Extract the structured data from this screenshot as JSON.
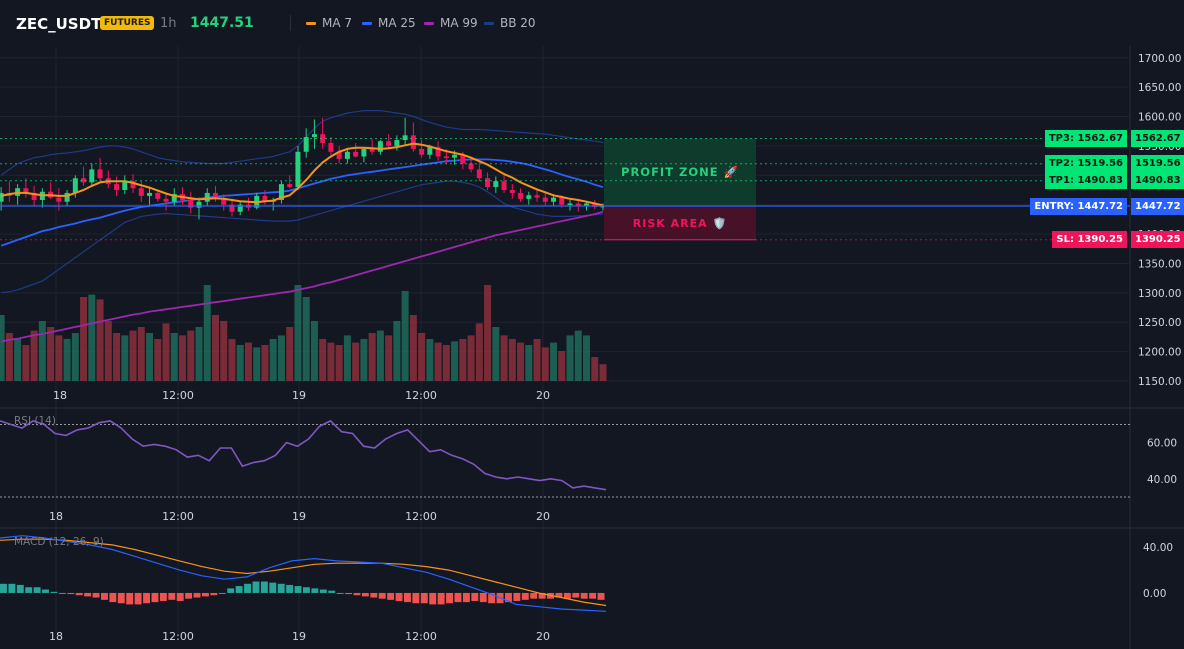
{
  "header": {
    "symbol": "ZEC_USDT",
    "badge": "FUTURES",
    "timeframe": "1h",
    "price": "1447.51",
    "legend": [
      {
        "name": "MA 7",
        "color": "#f7931a"
      },
      {
        "name": "MA 25",
        "color": "#2962ff"
      },
      {
        "name": "MA 99",
        "color": "#9c27b0"
      },
      {
        "name": "BB 20",
        "color": "#1e3a8a"
      }
    ]
  },
  "zones": {
    "profit": "PROFIT ZONE 🚀",
    "risk": "RISK AREA 🛡️"
  },
  "levels": [
    {
      "key": "tp3",
      "tag": "TP3: 1562.67",
      "price": 1562.67,
      "value": "1562.67",
      "color": "#00e676",
      "text": "#0b1a12"
    },
    {
      "key": "tp2",
      "tag": "TP2: 1519.56",
      "price": 1519.56,
      "value": "1519.56",
      "color": "#00e676",
      "text": "#0b1a12"
    },
    {
      "key": "tp1",
      "tag": "TP1: 1490.83",
      "price": 1490.83,
      "value": "1490.83",
      "color": "#00e676",
      "text": "#0b1a12"
    },
    {
      "key": "entry",
      "tag": "ENTRY: 1447.72",
      "price": 1447.72,
      "value": "1447.72",
      "color": "#2962ff",
      "text": "#ffffff"
    },
    {
      "key": "sl",
      "tag": "SL: 1390.25",
      "price": 1390.25,
      "value": "1390.25",
      "color": "#f0145a",
      "text": "#ffffff"
    }
  ],
  "chart_data": [
    {
      "type": "candlestick",
      "ylim": [
        1150,
        1720
      ],
      "yticks": [
        "1700.00",
        "1650.00",
        "1600.00",
        "1550.00",
        "1500.00",
        "1450.00",
        "1400.00",
        "1350.00",
        "1300.00",
        "1250.00",
        "1200.00",
        "1150.00"
      ],
      "xticks": [
        "18",
        "12:00",
        "19",
        "12:00",
        "20"
      ],
      "candles": [
        [
          1455,
          1480,
          1440,
          1470
        ],
        [
          1470,
          1490,
          1455,
          1465
        ],
        [
          1465,
          1485,
          1450,
          1478
        ],
        [
          1478,
          1495,
          1462,
          1470
        ],
        [
          1470,
          1482,
          1448,
          1458
        ],
        [
          1458,
          1478,
          1445,
          1472
        ],
        [
          1472,
          1488,
          1460,
          1462
        ],
        [
          1462,
          1478,
          1440,
          1455
        ],
        [
          1455,
          1475,
          1448,
          1470
        ],
        [
          1470,
          1500,
          1462,
          1495
        ],
        [
          1495,
          1515,
          1482,
          1488
        ],
        [
          1488,
          1520,
          1480,
          1510
        ],
        [
          1510,
          1530,
          1490,
          1495
        ],
        [
          1495,
          1508,
          1478,
          1485
        ],
        [
          1485,
          1498,
          1465,
          1475
        ],
        [
          1475,
          1500,
          1468,
          1490
        ],
        [
          1490,
          1502,
          1470,
          1478
        ],
        [
          1478,
          1490,
          1455,
          1465
        ],
        [
          1465,
          1480,
          1450,
          1470
        ],
        [
          1470,
          1475,
          1455,
          1460
        ],
        [
          1460,
          1470,
          1440,
          1455
        ],
        [
          1455,
          1478,
          1448,
          1468
        ],
        [
          1468,
          1480,
          1450,
          1458
        ],
        [
          1458,
          1472,
          1435,
          1445
        ],
        [
          1445,
          1462,
          1425,
          1455
        ],
        [
          1455,
          1478,
          1448,
          1470
        ],
        [
          1470,
          1482,
          1455,
          1460
        ],
        [
          1460,
          1468,
          1440,
          1450
        ],
        [
          1450,
          1460,
          1430,
          1438
        ],
        [
          1438,
          1455,
          1432,
          1450
        ],
        [
          1450,
          1462,
          1440,
          1445
        ],
        [
          1445,
          1470,
          1442,
          1465
        ],
        [
          1465,
          1475,
          1450,
          1455
        ],
        [
          1455,
          1462,
          1440,
          1458
        ],
        [
          1458,
          1490,
          1452,
          1485
        ],
        [
          1485,
          1500,
          1478,
          1480
        ],
        [
          1480,
          1550,
          1475,
          1540
        ],
        [
          1540,
          1580,
          1530,
          1565
        ],
        [
          1565,
          1595,
          1545,
          1570
        ],
        [
          1570,
          1598,
          1545,
          1555
        ],
        [
          1555,
          1565,
          1535,
          1540
        ],
        [
          1540,
          1550,
          1520,
          1528
        ],
        [
          1528,
          1545,
          1520,
          1540
        ],
        [
          1540,
          1555,
          1530,
          1532
        ],
        [
          1532,
          1548,
          1522,
          1545
        ],
        [
          1545,
          1562,
          1535,
          1540
        ],
        [
          1540,
          1560,
          1535,
          1558
        ],
        [
          1558,
          1570,
          1545,
          1550
        ],
        [
          1550,
          1568,
          1542,
          1560
        ],
        [
          1560,
          1598,
          1552,
          1568
        ],
        [
          1568,
          1590,
          1540,
          1545
        ],
        [
          1545,
          1560,
          1530,
          1535
        ],
        [
          1535,
          1552,
          1528,
          1548
        ],
        [
          1548,
          1558,
          1525,
          1532
        ],
        [
          1532,
          1545,
          1520,
          1530
        ],
        [
          1530,
          1542,
          1518,
          1535
        ],
        [
          1535,
          1540,
          1510,
          1520
        ],
        [
          1520,
          1530,
          1505,
          1510
        ],
        [
          1510,
          1522,
          1490,
          1495
        ],
        [
          1495,
          1505,
          1475,
          1480
        ],
        [
          1480,
          1498,
          1470,
          1490
        ],
        [
          1490,
          1500,
          1470,
          1475
        ],
        [
          1475,
          1485,
          1460,
          1470
        ],
        [
          1470,
          1478,
          1455,
          1460
        ],
        [
          1460,
          1472,
          1450,
          1466
        ],
        [
          1466,
          1478,
          1455,
          1462
        ],
        [
          1462,
          1470,
          1448,
          1455
        ],
        [
          1455,
          1468,
          1448,
          1462
        ],
        [
          1462,
          1466,
          1445,
          1450
        ],
        [
          1450,
          1460,
          1440,
          1452
        ],
        [
          1452,
          1460,
          1438,
          1448
        ],
        [
          1448,
          1455,
          1440,
          1452
        ],
        [
          1452,
          1458,
          1442,
          1446
        ],
        [
          1446,
          1452,
          1440,
          1448
        ]
      ],
      "ma7": [
        1465,
        1468,
        1470,
        1470,
        1468,
        1466,
        1466,
        1465,
        1465,
        1470,
        1475,
        1482,
        1488,
        1490,
        1490,
        1490,
        1487,
        1483,
        1479,
        1474,
        1469,
        1465,
        1463,
        1461,
        1459,
        1460,
        1461,
        1460,
        1458,
        1456,
        1455,
        1454,
        1456,
        1457,
        1462,
        1466,
        1478,
        1492,
        1508,
        1522,
        1532,
        1540,
        1545,
        1547,
        1547,
        1546,
        1545,
        1546,
        1548,
        1551,
        1554,
        1552,
        1549,
        1545,
        1541,
        1538,
        1535,
        1530,
        1524,
        1518,
        1510,
        1502,
        1496,
        1488,
        1482,
        1476,
        1471,
        1466,
        1463,
        1460,
        1458,
        1455,
        1452,
        1449
      ],
      "ma25": [
        1380,
        1385,
        1390,
        1395,
        1400,
        1405,
        1408,
        1412,
        1415,
        1418,
        1422,
        1425,
        1428,
        1432,
        1436,
        1440,
        1443,
        1446,
        1448,
        1450,
        1452,
        1454,
        1456,
        1458,
        1460,
        1462,
        1464,
        1465,
        1466,
        1467,
        1468,
        1469,
        1470,
        1471,
        1472,
        1474,
        1478,
        1482,
        1486,
        1490,
        1494,
        1497,
        1500,
        1502,
        1504,
        1506,
        1508,
        1510,
        1512,
        1514,
        1516,
        1518,
        1520,
        1522,
        1524,
        1525,
        1526,
        1527,
        1527,
        1527,
        1526,
        1525,
        1523,
        1521,
        1518,
        1514,
        1510,
        1506,
        1501,
        1497,
        1493,
        1489,
        1484,
        1480
      ],
      "ma99": [
        1217,
        1220,
        1222,
        1225,
        1228,
        1230,
        1233,
        1236,
        1239,
        1242,
        1245,
        1248,
        1251,
        1254,
        1257,
        1260,
        1263,
        1265,
        1268,
        1270,
        1272,
        1274,
        1276,
        1278,
        1280,
        1282,
        1284,
        1286,
        1288,
        1290,
        1292,
        1294,
        1296,
        1298,
        1300,
        1302,
        1305,
        1308,
        1311,
        1315,
        1318,
        1322,
        1326,
        1330,
        1334,
        1338,
        1342,
        1346,
        1350,
        1354,
        1358,
        1362,
        1366,
        1370,
        1374,
        1378,
        1382,
        1386,
        1390,
        1394,
        1398,
        1401,
        1404,
        1407,
        1410,
        1413,
        1416,
        1419,
        1422,
        1425,
        1428,
        1431,
        1434,
        1438
      ],
      "bb_upper": [
        1500,
        1510,
        1520,
        1525,
        1530,
        1532,
        1535,
        1537,
        1538,
        1540,
        1542,
        1545,
        1548,
        1550,
        1550,
        1548,
        1545,
        1540,
        1535,
        1530,
        1527,
        1525,
        1523,
        1522,
        1521,
        1520,
        1520,
        1520,
        1522,
        1524,
        1526,
        1528,
        1530,
        1532,
        1536,
        1540,
        1550,
        1565,
        1580,
        1592,
        1598,
        1602,
        1606,
        1608,
        1610,
        1610,
        1610,
        1608,
        1606,
        1604,
        1600,
        1595,
        1590,
        1586,
        1582,
        1580,
        1578,
        1578,
        1578,
        1577,
        1576,
        1575,
        1574,
        1573,
        1572,
        1571,
        1570,
        1568,
        1566,
        1564,
        1562,
        1560,
        1558,
        1556
      ],
      "bb_lower": [
        1300,
        1302,
        1305,
        1310,
        1315,
        1320,
        1330,
        1340,
        1350,
        1360,
        1370,
        1380,
        1390,
        1400,
        1410,
        1420,
        1425,
        1430,
        1432,
        1434,
        1435,
        1434,
        1433,
        1432,
        1431,
        1430,
        1429,
        1428,
        1427,
        1426,
        1425,
        1424,
        1423,
        1422,
        1422,
        1422,
        1424,
        1428,
        1432,
        1436,
        1440,
        1444,
        1448,
        1452,
        1456,
        1460,
        1464,
        1468,
        1472,
        1476,
        1480,
        1484,
        1486,
        1488,
        1490,
        1490,
        1488,
        1485,
        1480,
        1472,
        1462,
        1452,
        1446,
        1442,
        1438,
        1434,
        1432,
        1430,
        1430,
        1430,
        1431,
        1432,
        1433,
        1434
      ],
      "volume": [
        55,
        40,
        35,
        30,
        42,
        50,
        45,
        38,
        35,
        40,
        70,
        72,
        68,
        50,
        40,
        38,
        42,
        45,
        40,
        35,
        48,
        40,
        38,
        42,
        45,
        80,
        55,
        50,
        35,
        30,
        32,
        28,
        30,
        35,
        38,
        45,
        80,
        70,
        50,
        35,
        32,
        30,
        38,
        32,
        35,
        40,
        42,
        38,
        50,
        75,
        55,
        40,
        35,
        32,
        30,
        33,
        35,
        38,
        48,
        80,
        45,
        38,
        35,
        32,
        30,
        35,
        28,
        32,
        25,
        38,
        42,
        38,
        20,
        14
      ],
      "volume_up": [
        true,
        false,
        true,
        false,
        false,
        true,
        false,
        false,
        true,
        true,
        false,
        true,
        false,
        false,
        false,
        true,
        false,
        false,
        true,
        false,
        false,
        true,
        false,
        false,
        true,
        true,
        false,
        false,
        false,
        true,
        false,
        true,
        false,
        true,
        true,
        false,
        true,
        true,
        true,
        false,
        false,
        false,
        true,
        false,
        true,
        false,
        true,
        false,
        true,
        true,
        false,
        false,
        true,
        false,
        false,
        true,
        false,
        false,
        false,
        false,
        true,
        false,
        false,
        false,
        true,
        false,
        false,
        true,
        false,
        true,
        true,
        true,
        false,
        false
      ]
    },
    {
      "type": "line",
      "title": "RSI (14)",
      "ylim": [
        25,
        78
      ],
      "yticks": [
        "60.00",
        "40.00"
      ],
      "xticks": [
        "18",
        "12:00",
        "19",
        "12:00",
        "20"
      ],
      "values": [
        72,
        70,
        68,
        72,
        70,
        65,
        64,
        67,
        68,
        71,
        72,
        68,
        62,
        58,
        59,
        58,
        56,
        52,
        53,
        50,
        57,
        57,
        47,
        49,
        50,
        53,
        60,
        58,
        62,
        69,
        72,
        66,
        65,
        58,
        57,
        62,
        65,
        67,
        61,
        55,
        56,
        53,
        51,
        48,
        43,
        41,
        40,
        41,
        40,
        39,
        40,
        39,
        35,
        36,
        35,
        34
      ]
    },
    {
      "type": "line",
      "title": "MACD (12, 26, 9)",
      "ylim": [
        -28,
        55
      ],
      "yticks": [
        "40.00",
        "0.00"
      ],
      "xticks": [
        "18",
        "12:00",
        "19",
        "12:00",
        "20"
      ],
      "macd": [
        48,
        50,
        48,
        45,
        42,
        38,
        32,
        26,
        20,
        15,
        12,
        14,
        22,
        28,
        30,
        28,
        27,
        26,
        22,
        18,
        12,
        5,
        -2,
        -10,
        -12,
        -14,
        -15,
        -16
      ],
      "signal": [
        46,
        47,
        47,
        46,
        44,
        42,
        38,
        33,
        28,
        23,
        19,
        17,
        19,
        22,
        25,
        26,
        26,
        26,
        25,
        23,
        20,
        15,
        10,
        5,
        0,
        -4,
        -8,
        -11
      ],
      "histogram": [
        8,
        8,
        7,
        5,
        5,
        3,
        1,
        0,
        -1,
        -2,
        -3,
        -4,
        -6,
        -8,
        -9,
        -10,
        -10,
        -9,
        -8,
        -7,
        -6,
        -7,
        -5,
        -4,
        -3,
        -2,
        0,
        4,
        6,
        8,
        10,
        10,
        9,
        8,
        7,
        6,
        5,
        4,
        3,
        2,
        0,
        -1,
        -2,
        -3,
        -4,
        -5,
        -6,
        -7,
        -8,
        -9,
        -9,
        -10,
        -10,
        -9,
        -8,
        -8,
        -7,
        -8,
        -9,
        -9,
        -8,
        -7,
        -6,
        -5,
        -5,
        -5,
        -4,
        -5,
        -4,
        -5,
        -5,
        -6
      ]
    }
  ]
}
